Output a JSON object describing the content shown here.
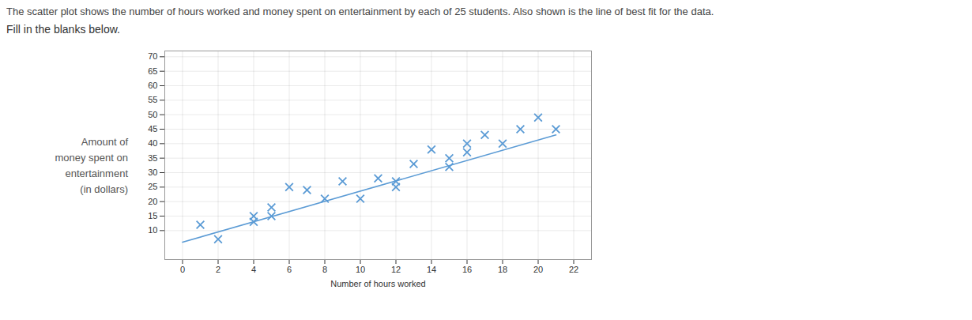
{
  "chart_data": {
    "type": "scatter",
    "title": "The scatter plot shows the number of hours worked and money spent on entertainment by each of 25 students. Also shown is the line of best fit for the data.",
    "subtitle": "Fill in the blanks below.",
    "xlabel": "Number of hours worked",
    "ylabel": "Amount of\nmoney spent on\nentertainment\n(in dollars)",
    "xlim": [
      -1,
      23
    ],
    "ylim": [
      0,
      72
    ],
    "xticks": [
      0,
      2,
      4,
      6,
      8,
      10,
      12,
      14,
      16,
      18,
      20,
      22
    ],
    "yticks": [
      10,
      15,
      20,
      25,
      30,
      35,
      40,
      45,
      50,
      55,
      60,
      65,
      70
    ],
    "grid": true,
    "series": [
      {
        "type": "scatter",
        "marker": "x",
        "color": "#5b9bd5",
        "x": [
          1,
          2,
          4,
          4,
          5,
          5,
          6,
          7,
          8,
          9,
          10,
          11,
          12,
          12,
          13,
          14,
          15,
          15,
          16,
          16,
          17,
          18,
          19,
          20,
          21
        ],
        "values": [
          12,
          7,
          13,
          15,
          18,
          15,
          25,
          24,
          21,
          27,
          21,
          28,
          25,
          27,
          33,
          38,
          35,
          32,
          40,
          37,
          43,
          40,
          45,
          49,
          45
        ]
      },
      {
        "type": "line",
        "color": "#5b9bd5",
        "x": [
          0,
          21
        ],
        "values": [
          6,
          43
        ]
      }
    ]
  }
}
